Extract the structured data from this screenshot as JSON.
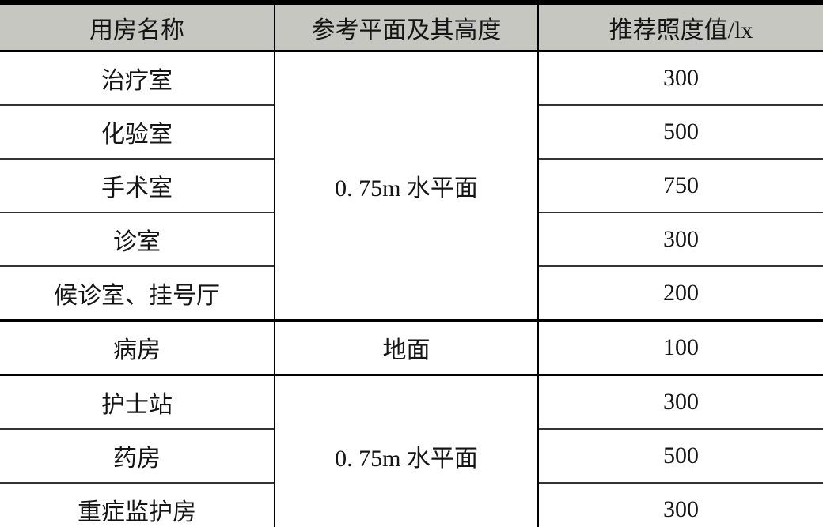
{
  "table": {
    "headers": [
      "用房名称",
      "参考平面及其高度",
      "推荐照度值/lx"
    ],
    "rows": [
      {
        "room": "治疗室",
        "plane": "0. 75m 水平面",
        "plane_rowspan": 5,
        "lux": "300"
      },
      {
        "room": "化验室",
        "lux": "500"
      },
      {
        "room": "手术室",
        "lux": "750"
      },
      {
        "room": "诊室",
        "lux": "300"
      },
      {
        "room": "候诊室、挂号厅",
        "lux": "200"
      },
      {
        "room": "病房",
        "plane": "地面",
        "plane_rowspan": 1,
        "lux": "100"
      },
      {
        "room": "护士站",
        "plane": "0. 75m 水平面",
        "plane_rowspan": 3,
        "lux": "300"
      },
      {
        "room": "药房",
        "lux": "500"
      },
      {
        "room": "重症监护房",
        "lux": "300"
      }
    ],
    "colors": {
      "header_bg": "#c6c7c1",
      "border": "#000000",
      "row_line": "#333333",
      "text": "#151515"
    }
  }
}
